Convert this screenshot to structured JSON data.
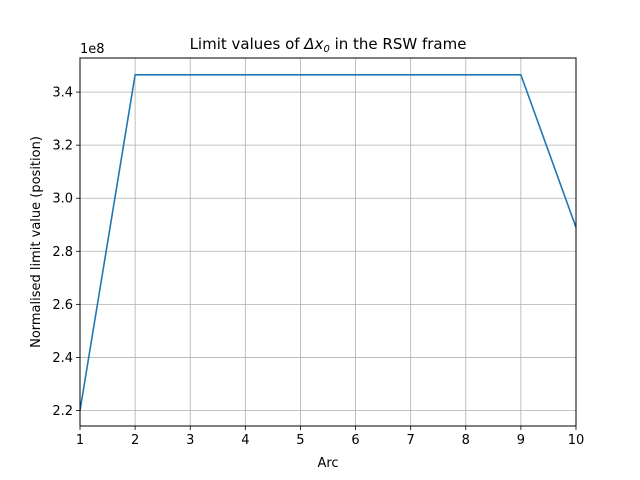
{
  "chart_data": {
    "type": "line",
    "title_prefix": "Limit values of ",
    "title_symbol": "Δx",
    "title_subscript": "0",
    "title_suffix": " in the RSW frame",
    "xlabel": "Arc",
    "ylabel": "Normalised limit value (position)",
    "y_offset_label": "1e8",
    "y_scale": 100000000,
    "xlim": [
      1,
      10
    ],
    "ylim": [
      2.1415,
      3.5285
    ],
    "x_ticks": [
      1,
      2,
      3,
      4,
      5,
      6,
      7,
      8,
      9,
      10
    ],
    "y_ticks": [
      2.2,
      2.4,
      2.6,
      2.8,
      3.0,
      3.2,
      3.4
    ],
    "grid": true,
    "series": [
      {
        "color": "#1f77b4",
        "x": [
          1,
          2,
          3,
          4,
          5,
          6,
          7,
          8,
          9,
          10
        ],
        "y": [
          2.2,
          3.465,
          3.465,
          3.465,
          3.465,
          3.465,
          3.465,
          3.465,
          3.465,
          2.89
        ]
      }
    ]
  }
}
